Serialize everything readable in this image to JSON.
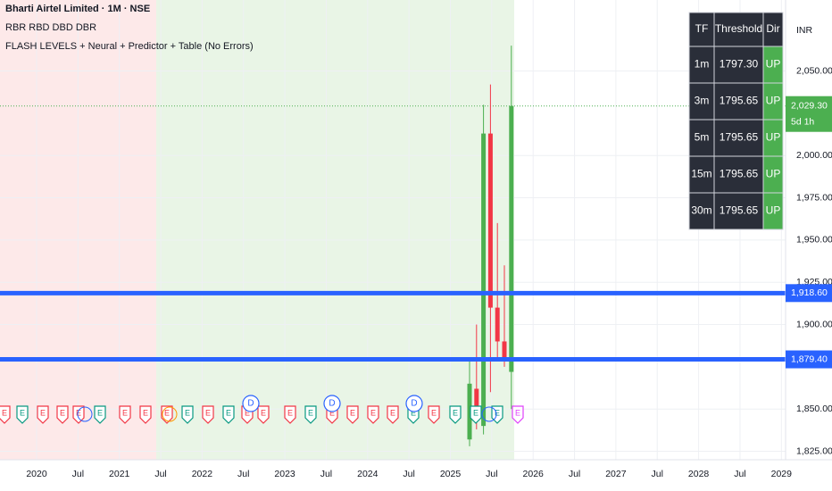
{
  "header": {
    "title": "Bharti Airtel Limited · 1M · NSE",
    "line2": "RBR RBD DBD DBR",
    "line3": "FLASH LEVELS + Neural + Predictor + Table (No Errors)"
  },
  "chart_data": {
    "type": "candlestick",
    "currency": "INR",
    "xticks": [
      "2020",
      "Jul",
      "2021",
      "Jul",
      "2022",
      "Jul",
      "2023",
      "Jul",
      "2024",
      "Jul",
      "2025",
      "Jul",
      "2026",
      "Jul",
      "2027",
      "Jul",
      "2028",
      "Jul",
      "2029"
    ],
    "ylim": [
      1820,
      2092
    ],
    "yticks": [
      {
        "value": 1825,
        "label": "1,825.00"
      },
      {
        "value": 1850,
        "label": "1,850.00"
      },
      {
        "value": 1900,
        "label": "1,900.00"
      },
      {
        "value": 1925,
        "label": "1,925.00"
      },
      {
        "value": 1950,
        "label": "1,950.00"
      },
      {
        "value": 1975,
        "label": "1,975.00"
      },
      {
        "value": 2000,
        "label": "2,000.00"
      },
      {
        "value": 2050,
        "label": "2,050.00"
      }
    ],
    "open": [
      1832,
      1862,
      1840,
      2013,
      1910,
      1890,
      1872
    ],
    "high": [
      1880,
      1900,
      2030,
      2042,
      1960,
      1935,
      2065
    ],
    "low": [
      1828,
      1838,
      1835,
      1860,
      1880,
      1875,
      1850
    ],
    "close": [
      1865,
      1845,
      2013,
      1910,
      1890,
      1880,
      2029.3
    ],
    "levels": [
      {
        "value": 1918.6,
        "label": "1,918.60"
      },
      {
        "value": 1879.4,
        "label": "1,879.40"
      }
    ],
    "last_price": {
      "value": 2029.3,
      "label": "2,029.30"
    },
    "countdown": "5d 1h",
    "earnings_marker": "E",
    "dividend_marker": "D"
  },
  "table": {
    "columns": [
      "TF",
      "Threshold",
      "Dir"
    ],
    "rows": [
      [
        "1m",
        "1797.30",
        "UP"
      ],
      [
        "3m",
        "1795.65",
        "UP"
      ],
      [
        "5m",
        "1795.65",
        "UP"
      ],
      [
        "15m",
        "1795.65",
        "UP"
      ],
      [
        "30m",
        "1795.65",
        "UP"
      ]
    ]
  }
}
